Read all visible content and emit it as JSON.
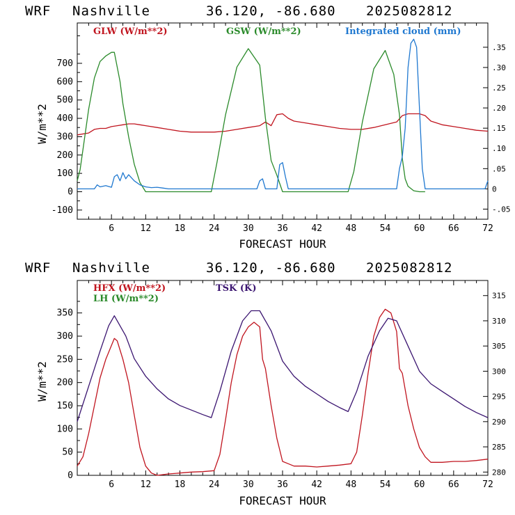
{
  "charts": [
    {
      "header": {
        "model": "WRF",
        "station": "Nashville",
        "coords": "36.120, -86.680",
        "init": "2025082812"
      },
      "chart_data": {
        "type": "line",
        "xlabel": "FORECAST HOUR",
        "ylabel": "W/m**2",
        "xlim": [
          0,
          72
        ],
        "ylim": [
          -150,
          920
        ],
        "x_ticks": [
          6,
          12,
          18,
          24,
          30,
          36,
          42,
          48,
          54,
          60,
          66,
          72
        ],
        "y_ticks": [
          -100,
          0,
          100,
          200,
          300,
          400,
          500,
          600,
          700
        ],
        "y2lim": [
          -0.075,
          0.41
        ],
        "y2_ticks": [
          -0.05,
          0,
          0.05,
          0.1,
          0.15,
          0.2,
          0.25,
          0.3,
          0.35
        ],
        "y2_tick_labels": [
          "-.05",
          "0",
          ".05",
          ".10",
          ".15",
          ".20",
          ".25",
          ".30",
          ".35"
        ],
        "series": [
          {
            "name": "GLW (W/m**2)",
            "color": "#c0141e",
            "axis": "left",
            "x": [
              0,
              2,
              3,
              4,
              5,
              6,
              7,
              8,
              9,
              10,
              11,
              12,
              14,
              16,
              18,
              20,
              22,
              24,
              26,
              28,
              30,
              32,
              33,
              34,
              35,
              36,
              37,
              38,
              40,
              42,
              44,
              46,
              48,
              50,
              52,
              54,
              56,
              57,
              58,
              59,
              60,
              61,
              62,
              64,
              66,
              68,
              70,
              72
            ],
            "y": [
              310,
              320,
              340,
              345,
              345,
              355,
              360,
              365,
              370,
              370,
              365,
              360,
              350,
              340,
              330,
              325,
              325,
              325,
              330,
              340,
              350,
              360,
              380,
              360,
              420,
              425,
              400,
              385,
              375,
              365,
              355,
              345,
              340,
              340,
              350,
              365,
              380,
              415,
              425,
              425,
              425,
              415,
              385,
              365,
              355,
              345,
              335,
              330
            ]
          },
          {
            "name": "GSW (W/m**2)",
            "color": "#2a8a2a",
            "axis": "left",
            "x": [
              0,
              0.5,
              1,
              2,
              3,
              4,
              5,
              6,
              6.5,
              7,
              7.5,
              8,
              9,
              10,
              11,
              12,
              13,
              23.5,
              24.5,
              26,
              28,
              30,
              32,
              33,
              34,
              35,
              36,
              37,
              47.5,
              48.5,
              50,
              52,
              54,
              55.5,
              56.5,
              57,
              57.5,
              58,
              59,
              60,
              61
            ],
            "y": [
              60,
              120,
              230,
              450,
              620,
              710,
              740,
              760,
              760,
              680,
              600,
              480,
              300,
              150,
              50,
              0,
              0,
              0,
              160,
              420,
              680,
              780,
              690,
              400,
              170,
              90,
              0,
              0,
              0,
              110,
              380,
              670,
              770,
              640,
              420,
              180,
              70,
              30,
              5,
              0,
              0
            ]
          },
          {
            "name": "Integrated cloud (mm)",
            "color": "#1f78d0",
            "axis": "right",
            "x": [
              0,
              3,
              3.5,
              4,
              5,
              6,
              6.5,
              7,
              7.5,
              8,
              8.5,
              9,
              10,
              11,
              12,
              13,
              14,
              15,
              16,
              31.5,
              32,
              32.5,
              33,
              35,
              35.5,
              36,
              36.5,
              37,
              56,
              56.5,
              57,
              57.5,
              58,
              58.5,
              59,
              59.5,
              60,
              60.5,
              61,
              71.5,
              72
            ],
            "y": [
              0,
              0,
              0.01,
              0.005,
              0.008,
              0.004,
              0.03,
              0.035,
              0.02,
              0.04,
              0.025,
              0.035,
              0.02,
              0.01,
              0.005,
              0.003,
              0.004,
              0.002,
              0,
              0,
              0.02,
              0.025,
              0,
              0,
              0.06,
              0.065,
              0.03,
              0,
              0,
              0.05,
              0.08,
              0.15,
              0.3,
              0.36,
              0.37,
              0.35,
              0.2,
              0.05,
              0,
              0,
              0.02
            ]
          }
        ]
      }
    },
    {
      "header": {
        "model": "WRF",
        "station": "Nashville",
        "coords": "36.120, -86.680",
        "init": "2025082812"
      },
      "chart_data": {
        "type": "line",
        "xlabel": "FORECAST HOUR",
        "ylabel": "W/m**2",
        "xlim": [
          0,
          72
        ],
        "ylim": [
          0,
          420
        ],
        "x_ticks": [
          6,
          12,
          18,
          24,
          30,
          36,
          42,
          48,
          54,
          60,
          66,
          72
        ],
        "y_ticks": [
          0,
          50,
          100,
          150,
          200,
          250,
          300,
          350
        ],
        "y2lim": [
          279.35,
          318.0
        ],
        "y2_ticks": [
          280,
          285,
          290,
          295,
          300,
          305,
          310,
          315
        ],
        "series": [
          {
            "name": "HFX (W/m**2)",
            "color": "#c0141e",
            "axis": "left",
            "x": [
              0,
              1,
              2,
              3,
              4,
              5,
              6,
              6.5,
              7,
              7.5,
              8,
              9,
              10,
              11,
              12,
              13,
              14,
              16,
              18,
              20,
              22,
              24,
              25,
              26,
              27,
              28,
              29,
              30,
              31,
              32,
              32.5,
              33,
              34,
              35,
              36,
              37,
              38,
              40,
              42,
              44,
              46,
              48,
              49,
              50,
              51,
              52,
              53,
              54,
              55,
              56,
              56.5,
              57,
              58,
              59,
              60,
              61,
              62,
              64,
              66,
              68,
              70,
              72
            ],
            "y": [
              20,
              40,
              90,
              150,
              210,
              250,
              280,
              295,
              290,
              270,
              250,
              200,
              130,
              60,
              20,
              5,
              0,
              3,
              5,
              7,
              8,
              10,
              45,
              120,
              200,
              260,
              300,
              320,
              330,
              320,
              250,
              230,
              150,
              80,
              30,
              25,
              20,
              20,
              18,
              20,
              22,
              25,
              50,
              130,
              220,
              300,
              340,
              358,
              350,
              310,
              230,
              220,
              150,
              100,
              60,
              40,
              28,
              28,
              30,
              30,
              32,
              35
            ]
          },
          {
            "name": "LH (W/m**2)",
            "color": "#2a8a2a",
            "axis": "left",
            "x": [],
            "y": []
          },
          {
            "name": "TSK (K)",
            "color": "#3a1470",
            "axis": "right",
            "x": [
              0,
              2,
              4,
              5.5,
              6.5,
              7.5,
              8.5,
              10,
              12,
              14,
              16,
              18,
              20,
              22,
              23.5,
              25,
              27,
              29,
              30.5,
              32,
              34,
              36,
              38,
              40,
              42,
              44,
              46,
              47.5,
              49,
              51,
              53,
              54.5,
              56,
              58,
              60,
              62,
              64,
              66,
              68,
              70,
              72
            ],
            "y": [
              290,
              297,
              304,
              309,
              311,
              309,
              307,
              302.5,
              299,
              296.5,
              294.5,
              293.2,
              292.3,
              291.4,
              290.8,
              296,
              304,
              310,
              312,
              312,
              308,
              302,
              299,
              297,
              295.5,
              294,
              292.8,
              292,
              296,
              303,
              308,
              310.5,
              310,
              305,
              300,
              297.5,
              296,
              294.5,
              293,
              291.8,
              290.8
            ]
          }
        ]
      }
    }
  ],
  "legends": [
    [
      "GLW (W/m**2)",
      "GSW (W/m**2)",
      "Integrated cloud (mm)"
    ],
    [
      "HFX (W/m**2)",
      "LH  (W/m**2)",
      "TSK (K)"
    ]
  ]
}
